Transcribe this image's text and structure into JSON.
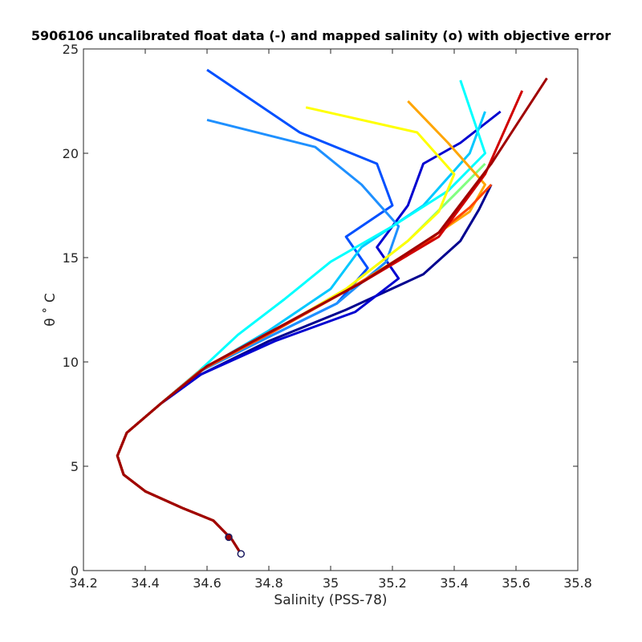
{
  "chart_data": {
    "type": "line",
    "title": "5906106 uncalibrated float data (-) and mapped salinity (o) with objective error",
    "xlabel": "Salinity (PSS-78)",
    "ylabel": "θ ˚ C",
    "xlim": [
      34.2,
      35.8
    ],
    "ylim": [
      0,
      25
    ],
    "x_ticks": [
      "34.2",
      "34.4",
      "34.6",
      "34.8",
      "35",
      "35.2",
      "35.4",
      "35.6",
      "35.8"
    ],
    "y_ticks": [
      "0",
      "5",
      "10",
      "15",
      "20",
      "25"
    ],
    "x_tick_values": [
      34.2,
      34.4,
      34.6,
      34.8,
      35.0,
      35.2,
      35.4,
      35.6,
      35.8
    ],
    "y_tick_values": [
      0,
      5,
      10,
      15,
      20,
      25
    ],
    "grid": false,
    "legend": "none",
    "colormap": "jet",
    "series": [
      {
        "color": "#00008f",
        "x": [
          34.71,
          34.68,
          34.62,
          34.52,
          34.4,
          34.33,
          34.31,
          34.34,
          34.45,
          34.58,
          34.8,
          35.05,
          35.3,
          35.42,
          35.48,
          35.52
        ],
        "y": [
          0.8,
          1.5,
          2.4,
          3.0,
          3.8,
          4.6,
          5.5,
          6.6,
          8.0,
          9.4,
          11.0,
          12.5,
          14.2,
          15.8,
          17.3,
          18.5
        ]
      },
      {
        "color": "#0000d0",
        "x": [
          34.71,
          34.68,
          34.62,
          34.52,
          34.4,
          34.33,
          34.31,
          34.34,
          34.45,
          34.58,
          34.82,
          35.08,
          35.22,
          35.15,
          35.25,
          35.3,
          35.42,
          35.55
        ],
        "y": [
          0.8,
          1.5,
          2.4,
          3.0,
          3.8,
          4.6,
          5.5,
          6.6,
          8.0,
          9.4,
          11.0,
          12.4,
          14.0,
          15.5,
          17.5,
          19.5,
          20.5,
          22.0
        ]
      },
      {
        "color": "#0050ff",
        "x": [
          34.71,
          34.68,
          34.62,
          34.52,
          34.4,
          34.33,
          34.31,
          34.34,
          34.45,
          34.57,
          34.8,
          35.02,
          35.12,
          35.05,
          35.2,
          35.15,
          34.9,
          34.6
        ],
        "y": [
          0.8,
          1.5,
          2.4,
          3.0,
          3.8,
          4.6,
          5.5,
          6.6,
          8.0,
          9.5,
          11.2,
          12.8,
          14.5,
          16.0,
          17.5,
          19.5,
          21.0,
          24.0
        ]
      },
      {
        "color": "#1e90ff",
        "x": [
          34.71,
          34.68,
          34.62,
          34.52,
          34.4,
          34.33,
          34.31,
          34.34,
          34.45,
          34.57,
          34.8,
          35.02,
          35.18,
          35.22,
          35.1,
          34.95,
          34.6
        ],
        "y": [
          0.8,
          1.5,
          2.4,
          3.0,
          3.8,
          4.6,
          5.5,
          6.6,
          8.0,
          9.5,
          11.2,
          12.8,
          14.8,
          16.5,
          18.5,
          20.3,
          21.6
        ]
      },
      {
        "color": "#00c8ff",
        "x": [
          34.71,
          34.68,
          34.62,
          34.52,
          34.4,
          34.33,
          34.31,
          34.34,
          34.45,
          34.57,
          34.8,
          35.0,
          35.1,
          35.3,
          35.45,
          35.5
        ],
        "y": [
          0.8,
          1.5,
          2.4,
          3.0,
          3.8,
          4.6,
          5.5,
          6.6,
          8.0,
          9.5,
          11.5,
          13.5,
          15.5,
          17.5,
          20.0,
          22.0
        ]
      },
      {
        "color": "#00ffff",
        "x": [
          34.71,
          34.68,
          34.62,
          34.52,
          34.4,
          34.33,
          34.31,
          34.34,
          34.45,
          34.57,
          34.7,
          34.85,
          35.0,
          35.2,
          35.38,
          35.5,
          35.42
        ],
        "y": [
          0.8,
          1.5,
          2.4,
          3.0,
          3.8,
          4.6,
          5.5,
          6.6,
          8.0,
          9.5,
          11.3,
          13.0,
          14.8,
          16.5,
          18.2,
          20.0,
          23.5
        ]
      },
      {
        "color": "#80ff80",
        "x": [
          34.71,
          34.68,
          34.62,
          34.52,
          34.4,
          34.33,
          34.31,
          34.34,
          34.45,
          34.58,
          34.82,
          35.05,
          35.25,
          35.4,
          35.5
        ],
        "y": [
          0.8,
          1.5,
          2.4,
          3.0,
          3.8,
          4.6,
          5.5,
          6.6,
          8.0,
          9.6,
          11.5,
          13.5,
          15.8,
          18.0,
          19.5
        ]
      },
      {
        "color": "#ffff00",
        "x": [
          34.71,
          34.68,
          34.62,
          34.52,
          34.4,
          34.33,
          34.31,
          34.34,
          34.45,
          34.58,
          34.82,
          35.05,
          35.25,
          35.35,
          35.4,
          35.28,
          34.92
        ],
        "y": [
          0.8,
          1.5,
          2.4,
          3.0,
          3.8,
          4.6,
          5.5,
          6.6,
          8.0,
          9.6,
          11.5,
          13.5,
          15.8,
          17.2,
          19.0,
          21.0,
          22.2
        ]
      },
      {
        "color": "#ffa500",
        "x": [
          34.71,
          34.68,
          34.62,
          34.52,
          34.4,
          34.33,
          34.31,
          34.34,
          34.45,
          34.58,
          34.82,
          35.05,
          35.28,
          35.45,
          35.5,
          35.38,
          35.25
        ],
        "y": [
          0.8,
          1.5,
          2.4,
          3.0,
          3.8,
          4.6,
          5.5,
          6.6,
          8.0,
          9.6,
          11.5,
          13.4,
          15.5,
          17.2,
          18.5,
          20.5,
          22.5
        ]
      },
      {
        "color": "#ff4500",
        "x": [
          34.71,
          34.68,
          34.62,
          34.52,
          34.4,
          34.33,
          34.31,
          34.34,
          34.45,
          34.58,
          34.82,
          35.05,
          35.3,
          35.45,
          35.52
        ],
        "y": [
          0.8,
          1.5,
          2.4,
          3.0,
          3.8,
          4.6,
          5.5,
          6.6,
          8.0,
          9.6,
          11.5,
          13.4,
          15.6,
          17.4,
          18.5
        ]
      },
      {
        "color": "#d00000",
        "x": [
          34.71,
          34.68,
          34.62,
          34.52,
          34.4,
          34.33,
          34.31,
          34.34,
          34.45,
          34.6,
          34.85,
          35.1,
          35.35,
          35.5,
          35.62
        ],
        "y": [
          0.8,
          1.5,
          2.4,
          3.0,
          3.8,
          4.6,
          5.5,
          6.6,
          8.0,
          9.8,
          11.8,
          13.8,
          16.0,
          19.0,
          23.0
        ]
      },
      {
        "color": "#a00000",
        "x": [
          34.71,
          34.68,
          34.62,
          34.52,
          34.4,
          34.33,
          34.31,
          34.34,
          34.45,
          34.6,
          34.85,
          35.1,
          35.35,
          35.52,
          35.7
        ],
        "y": [
          0.8,
          1.5,
          2.4,
          3.0,
          3.8,
          4.6,
          5.5,
          6.6,
          8.0,
          9.8,
          11.8,
          13.8,
          16.2,
          19.5,
          23.6
        ]
      }
    ],
    "mapped_points": [
      {
        "x": 34.67,
        "y": 1.6
      },
      {
        "x": 34.71,
        "y": 0.8
      }
    ]
  }
}
